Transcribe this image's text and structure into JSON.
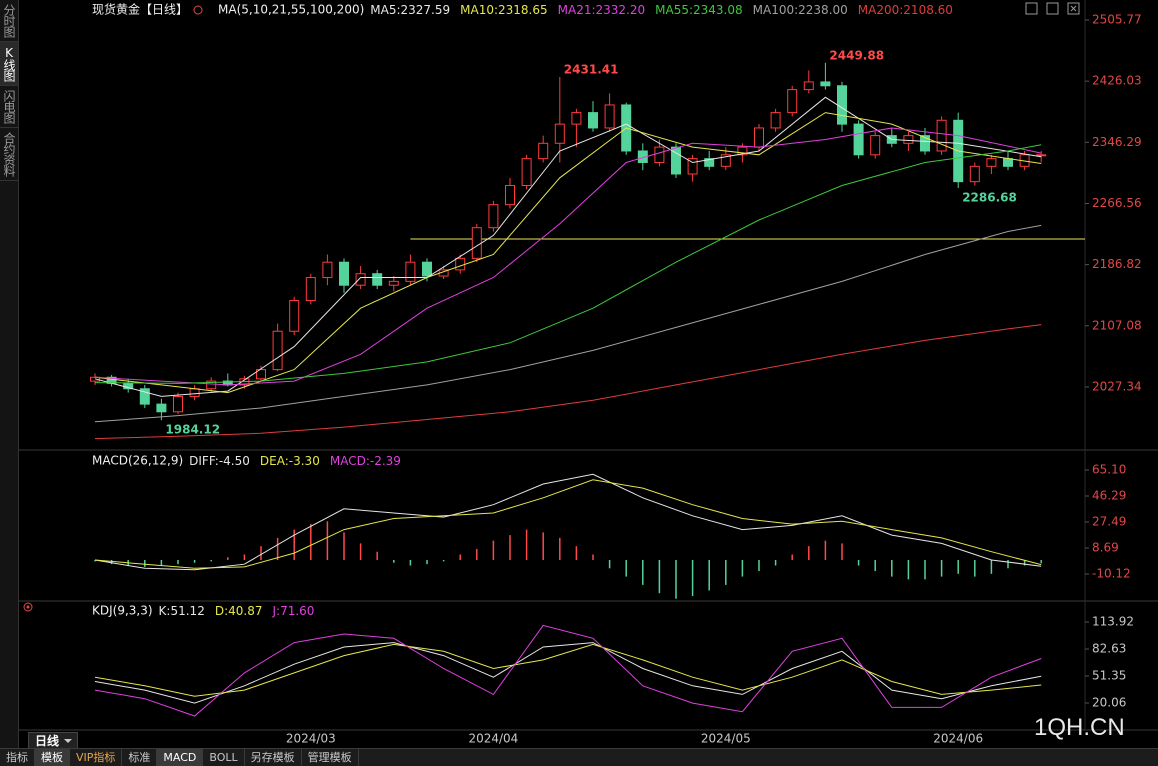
{
  "sidebar": [
    "分时图",
    "K线图",
    "闪电图",
    "合约资料"
  ],
  "period_tab": "日线",
  "toolbar": [
    "指标",
    "模板",
    "VIP指标",
    "标准",
    "MACD",
    "BOLL",
    "另存模板",
    "管理模板"
  ],
  "watermark": "1QH.CN",
  "chart_data": [
    {
      "type": "candlestick",
      "title": "现货黄金【日线】",
      "indicator": "MA(5,10,21,55,100,200)",
      "categories": [
        null,
        null,
        null,
        null,
        null,
        null,
        null,
        null,
        null,
        null,
        null,
        null,
        null,
        "2024/03",
        null,
        null,
        null,
        null,
        null,
        null,
        null,
        null,
        null,
        null,
        "2024/04",
        null,
        null,
        null,
        null,
        null,
        null,
        null,
        null,
        null,
        null,
        null,
        null,
        null,
        "2024/05",
        null,
        null,
        null,
        null,
        null,
        null,
        null,
        null,
        null,
        null,
        null,
        null,
        null,
        "2024/06",
        null,
        null,
        null,
        null,
        null
      ],
      "candles": [
        [
          2035,
          2045,
          2030,
          2040
        ],
        [
          2040,
          2043,
          2028,
          2032
        ],
        [
          2032,
          2038,
          2020,
          2025
        ],
        [
          2025,
          2030,
          2000,
          2005
        ],
        [
          2005,
          2012,
          1984.12,
          1995
        ],
        [
          1995,
          2020,
          1992,
          2015
        ],
        [
          2015,
          2030,
          2010,
          2025
        ],
        [
          2025,
          2040,
          2020,
          2035
        ],
        [
          2035,
          2045,
          2028,
          2030
        ],
        [
          2030,
          2042,
          2025,
          2038
        ],
        [
          2038,
          2055,
          2035,
          2050
        ],
        [
          2050,
          2110,
          2048,
          2100
        ],
        [
          2100,
          2145,
          2095,
          2140
        ],
        [
          2140,
          2175,
          2135,
          2170
        ],
        [
          2170,
          2200,
          2160,
          2190
        ],
        [
          2190,
          2195,
          2150,
          2160
        ],
        [
          2160,
          2185,
          2155,
          2175
        ],
        [
          2175,
          2180,
          2155,
          2160
        ],
        [
          2160,
          2172,
          2152,
          2165
        ],
        [
          2165,
          2200,
          2160,
          2190
        ],
        [
          2190,
          2195,
          2165,
          2172
        ],
        [
          2172,
          2185,
          2168,
          2180
        ],
        [
          2180,
          2200,
          2175,
          2195
        ],
        [
          2195,
          2240,
          2190,
          2235
        ],
        [
          2235,
          2270,
          2230,
          2265
        ],
        [
          2265,
          2300,
          2260,
          2290
        ],
        [
          2290,
          2330,
          2285,
          2325
        ],
        [
          2325,
          2355,
          2320,
          2345
        ],
        [
          2345,
          2431.41,
          2320,
          2370
        ],
        [
          2370,
          2390,
          2340,
          2385
        ],
        [
          2385,
          2400,
          2360,
          2365
        ],
        [
          2365,
          2410,
          2360,
          2395
        ],
        [
          2395,
          2398,
          2330,
          2335
        ],
        [
          2335,
          2345,
          2310,
          2320
        ],
        [
          2320,
          2350,
          2315,
          2340
        ],
        [
          2340,
          2345,
          2300,
          2305
        ],
        [
          2305,
          2330,
          2295,
          2325
        ],
        [
          2325,
          2335,
          2310,
          2315
        ],
        [
          2315,
          2340,
          2310,
          2330
        ],
        [
          2330,
          2345,
          2320,
          2340
        ],
        [
          2340,
          2370,
          2335,
          2365
        ],
        [
          2365,
          2390,
          2360,
          2385
        ],
        [
          2385,
          2420,
          2380,
          2415
        ],
        [
          2415,
          2440,
          2410,
          2425
        ],
        [
          2425,
          2449.88,
          2415,
          2420
        ],
        [
          2420,
          2425,
          2360,
          2370
        ],
        [
          2370,
          2375,
          2325,
          2330
        ],
        [
          2330,
          2360,
          2325,
          2355
        ],
        [
          2355,
          2365,
          2340,
          2345
        ],
        [
          2345,
          2360,
          2335,
          2355
        ],
        [
          2355,
          2365,
          2330,
          2335
        ],
        [
          2335,
          2380,
          2330,
          2375
        ],
        [
          2375,
          2385,
          2286.68,
          2295
        ],
        [
          2295,
          2320,
          2290,
          2315
        ],
        [
          2315,
          2330,
          2305,
          2325
        ],
        [
          2325,
          2335,
          2310,
          2315
        ],
        [
          2315,
          2335,
          2310,
          2330
        ],
        [
          2330,
          2335,
          2320,
          2330
        ]
      ],
      "up_color": "#ff3b3b",
      "down_color": "#54d49a",
      "marked_highs": [
        28,
        44
      ],
      "marked_lows": [
        4,
        52
      ],
      "level": 2220.3,
      "level_from": 19,
      "level_color": "#e8e85a",
      "ylim": [
        1947.8,
        2531.8
      ],
      "yticks": [
        2505.77,
        2426.03,
        2346.29,
        2266.56,
        2186.82,
        2107.08,
        2027.34
      ],
      "series": [
        {
          "label": "MA5:",
          "last": 2327.59,
          "color": "#e6e6e6",
          "x": [
            0,
            4,
            8,
            12,
            16,
            20,
            24,
            28,
            32,
            36,
            40,
            44,
            48,
            52,
            57
          ],
          "values": [
            2038,
            2015,
            2022,
            2080,
            2170,
            2170,
            2225,
            2335,
            2370,
            2320,
            2335,
            2405,
            2350,
            2345,
            2327.59
          ]
        },
        {
          "label": "MA10:",
          "last": 2318.65,
          "color": "#e6e64c",
          "x": [
            0,
            4,
            8,
            12,
            16,
            20,
            24,
            28,
            32,
            36,
            40,
            44,
            48,
            52,
            57
          ],
          "values": [
            2040,
            2030,
            2020,
            2050,
            2130,
            2170,
            2200,
            2300,
            2365,
            2340,
            2330,
            2385,
            2370,
            2335,
            2318.65
          ]
        },
        {
          "label": "MA21:",
          "last": {
            "value": 2332.2,
            "label": "2332.20"
          },
          "color": "#e040e0",
          "x": [
            0,
            4,
            8,
            12,
            16,
            20,
            24,
            28,
            32,
            36,
            40,
            44,
            48,
            52,
            57
          ],
          "values": [
            2040,
            2035,
            2030,
            2035,
            2070,
            2130,
            2170,
            2240,
            2320,
            2345,
            2340,
            2350,
            2365,
            2355,
            2332.2
          ]
        },
        {
          "label": "MA55:",
          "last": 2343.08,
          "color": "#3ec83e",
          "x": [
            0,
            5,
            10,
            15,
            20,
            25,
            30,
            35,
            40,
            45,
            50,
            55,
            57
          ],
          "values": [
            2033,
            2032,
            2035,
            2045,
            2060,
            2085,
            2130,
            2190,
            2245,
            2290,
            2320,
            2335,
            2343.08
          ]
        },
        {
          "label": "MA100:",
          "last": {
            "value": 2238,
            "label": "2238.00"
          },
          "color": "#a0a0a0",
          "x": [
            0,
            5,
            10,
            15,
            20,
            25,
            30,
            35,
            40,
            45,
            50,
            55,
            57
          ],
          "values": [
            1982,
            1990,
            2000,
            2015,
            2030,
            2050,
            2075,
            2105,
            2135,
            2165,
            2200,
            2230,
            2238
          ]
        },
        {
          "label": "MA200:",
          "last": {
            "value": 2108.6,
            "label": "2108.60"
          },
          "color": "#e03c3c",
          "x": [
            0,
            5,
            10,
            15,
            20,
            25,
            30,
            35,
            40,
            45,
            50,
            55,
            57
          ],
          "values": [
            1960,
            1963,
            1967,
            1975,
            1985,
            1995,
            2010,
            2030,
            2050,
            2070,
            2088,
            2103,
            2108.6
          ]
        }
      ]
    },
    {
      "type": "macd",
      "title": "MACD(26,12,9)",
      "ylim": [
        -28.93,
        78.12
      ],
      "yticks": [
        {
          "value": 65.1,
          "label": "65.10"
        },
        46.29,
        27.49,
        8.69,
        -10.12
      ],
      "series": [
        {
          "label": "DIFF:",
          "last": {
            "value": -4.5,
            "label": "-4.50"
          },
          "color": "#e6e6e6",
          "x": [
            0,
            3,
            6,
            9,
            12,
            15,
            18,
            21,
            24,
            27,
            30,
            33,
            36,
            39,
            42,
            45,
            48,
            51,
            54,
            57
          ],
          "values": [
            0,
            -6,
            -7,
            -3,
            18,
            37,
            34,
            31,
            40,
            55,
            62,
            45,
            32,
            22,
            25,
            32,
            18,
            12,
            0,
            -4.5
          ]
        },
        {
          "label": "DEA:",
          "last": {
            "value": -3.3,
            "label": "-3.30"
          },
          "color": "#e6e64c",
          "x": [
            0,
            3,
            6,
            9,
            12,
            15,
            18,
            21,
            24,
            27,
            30,
            33,
            36,
            39,
            42,
            45,
            48,
            51,
            54,
            57
          ],
          "values": [
            0,
            -3,
            -6,
            -5,
            5,
            22,
            30,
            32,
            34,
            45,
            58,
            52,
            40,
            30,
            26,
            28,
            22,
            16,
            6,
            -3.3
          ]
        }
      ],
      "histogram": {
        "label": "MACD:",
        "last": -2.39,
        "color": "#e040e0",
        "up_color": "#ff4a4a",
        "down_color": "#54d49a",
        "values": [
          -1,
          -3,
          -4,
          -5,
          -4,
          -3,
          -2,
          -1,
          2,
          4,
          10,
          16,
          22,
          26,
          28,
          20,
          12,
          6,
          -2,
          -4,
          -3,
          -1,
          4,
          8,
          14,
          18,
          22,
          20,
          16,
          10,
          4,
          -6,
          -12,
          -18,
          -24,
          -28,
          -26,
          -22,
          -18,
          -12,
          -8,
          -4,
          4,
          10,
          14,
          12,
          -4,
          -8,
          -12,
          -14,
          -14,
          -12,
          -10,
          -12,
          -10,
          -6,
          -4,
          -2.39
        ]
      }
    },
    {
      "type": "kdj",
      "title": "KDJ(9,3,3)",
      "ylim": [
        -28.6,
        137.1
      ],
      "yticks": [
        113.92,
        82.63,
        51.35,
        20.06
      ],
      "series": [
        {
          "label": "K:",
          "last": 51.12,
          "color": "#e6e6e6",
          "x": [
            0,
            3,
            6,
            9,
            12,
            15,
            18,
            21,
            24,
            27,
            30,
            33,
            36,
            39,
            42,
            45,
            48,
            51,
            54,
            57
          ],
          "values": [
            45,
            35,
            20,
            40,
            65,
            85,
            90,
            75,
            50,
            85,
            90,
            60,
            40,
            30,
            60,
            80,
            35,
            25,
            40,
            51.12
          ]
        },
        {
          "label": "D:",
          "last": 40.87,
          "color": "#e6e64c",
          "x": [
            0,
            3,
            6,
            9,
            12,
            15,
            18,
            21,
            24,
            27,
            30,
            33,
            36,
            39,
            42,
            45,
            48,
            51,
            54,
            57
          ],
          "values": [
            50,
            40,
            28,
            35,
            55,
            75,
            88,
            80,
            60,
            70,
            88,
            70,
            50,
            35,
            50,
            70,
            45,
            30,
            35,
            40.87
          ]
        },
        {
          "label": "J:",
          "last": {
            "value": 71.6,
            "label": "71.60"
          },
          "color": "#e040e0",
          "x": [
            0,
            3,
            6,
            9,
            12,
            15,
            18,
            21,
            24,
            27,
            30,
            33,
            36,
            39,
            42,
            45,
            48,
            51,
            54,
            57
          ],
          "values": [
            35,
            25,
            5,
            55,
            90,
            100,
            95,
            60,
            30,
            110,
            95,
            40,
            20,
            10,
            80,
            95,
            15,
            15,
            50,
            71.6
          ]
        }
      ]
    }
  ]
}
